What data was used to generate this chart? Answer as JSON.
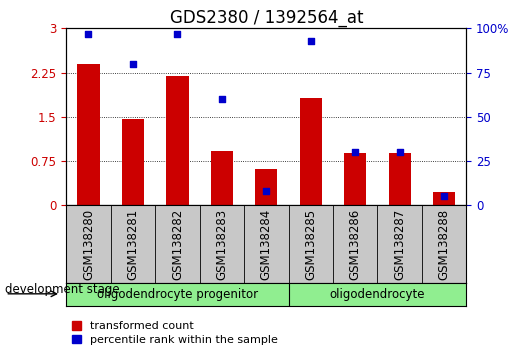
{
  "title": "GDS2380 / 1392564_at",
  "samples": [
    "GSM138280",
    "GSM138281",
    "GSM138282",
    "GSM138283",
    "GSM138284",
    "GSM138285",
    "GSM138286",
    "GSM138287",
    "GSM138288"
  ],
  "red_values": [
    2.4,
    1.47,
    2.2,
    0.92,
    0.62,
    1.82,
    0.88,
    0.88,
    0.22
  ],
  "blue_values": [
    97,
    80,
    97,
    60,
    8,
    93,
    30,
    30,
    5
  ],
  "ylim_left": [
    0,
    3.0
  ],
  "ylim_right": [
    0,
    100
  ],
  "yticks_left": [
    0,
    0.75,
    1.5,
    2.25,
    3.0
  ],
  "ytick_labels_left": [
    "0",
    "0.75",
    "1.5",
    "2.25",
    "3"
  ],
  "yticks_right": [
    0,
    25,
    50,
    75,
    100
  ],
  "ytick_labels_right": [
    "0",
    "25",
    "50",
    "75",
    "100%"
  ],
  "grid_yticks": [
    0.75,
    1.5,
    2.25
  ],
  "bar_color": "#cc0000",
  "dot_color": "#0000cc",
  "bar_width": 0.5,
  "groups": [
    {
      "label": "oligodendrocyte progenitor",
      "start": 0,
      "end": 5
    },
    {
      "label": "oligodendrocyte",
      "start": 5,
      "end": 9
    }
  ],
  "group_color": "#90ee90",
  "group_label_prefix": "development stage",
  "legend_items": [
    {
      "label": "transformed count",
      "color": "#cc0000"
    },
    {
      "label": "percentile rank within the sample",
      "color": "#0000cc"
    }
  ],
  "xlabel_area_color": "#c8c8c8",
  "title_fontsize": 12,
  "tick_fontsize": 8.5,
  "group_fontsize": 8.5,
  "legend_fontsize": 8
}
